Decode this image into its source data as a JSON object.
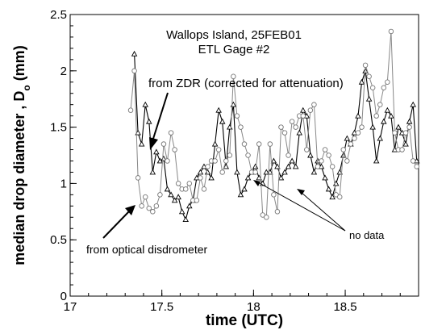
{
  "chart_data": {
    "type": "line",
    "title": "Wallops Island, 25FEB01",
    "subtitle": "ETL Gage #2",
    "xlabel": "time (UTC)",
    "ylabel": "median drop diameter , D",
    "ylabel_sub": "o",
    "ylabel_unit": "(mm)",
    "xlim": [
      17.0,
      18.9
    ],
    "ylim": [
      0,
      2.5
    ],
    "xticks": [
      "17",
      "17.5",
      "18",
      "18.5"
    ],
    "xtick_values": [
      17,
      17.5,
      18,
      18.5
    ],
    "yticks": [
      "0",
      "0.5",
      "1",
      "1.5",
      "2",
      "2.5"
    ],
    "ytick_values": [
      0,
      0.5,
      1,
      1.5,
      2,
      2.5
    ],
    "grid": false,
    "annotations": [
      {
        "text": "from ZDR (corrected for attenuation)"
      },
      {
        "text": "from optical disdrometer"
      },
      {
        "text": "no data"
      }
    ],
    "series": [
      {
        "marker": "triangle",
        "x": [
          17.35,
          17.37,
          17.39,
          17.41,
          17.43,
          17.45,
          17.47,
          17.49,
          17.51,
          17.53,
          17.55,
          17.57,
          17.59,
          17.61,
          17.63,
          17.65,
          17.67,
          17.69,
          17.71,
          17.73,
          17.75,
          17.77,
          17.79,
          17.81,
          17.83,
          17.85,
          17.87,
          17.89,
          17.91,
          17.93,
          17.95,
          17.97,
          17.99,
          18.01,
          18.03,
          18.05,
          18.07,
          18.09,
          18.11,
          18.13,
          18.15,
          18.17,
          18.19,
          18.21,
          18.23,
          18.25,
          18.27,
          18.29,
          18.31,
          18.33,
          18.35,
          18.37,
          18.39,
          18.41,
          18.43,
          18.45,
          18.47,
          18.49,
          18.51,
          18.53,
          18.55,
          18.57,
          18.59,
          18.61,
          18.63,
          18.65,
          18.67,
          18.69,
          18.71,
          18.73,
          18.75,
          18.77,
          18.79,
          18.81,
          18.83,
          18.85,
          18.87,
          18.89
        ],
        "y": [
          2.15,
          1.45,
          1.35,
          1.7,
          1.55,
          1.1,
          1.28,
          1.2,
          1.22,
          0.95,
          0.9,
          0.85,
          0.88,
          0.75,
          0.68,
          0.8,
          0.85,
          1.05,
          1.1,
          1.15,
          1.1,
          1.05,
          1.35,
          1.65,
          1.55,
          1.15,
          1.5,
          1.7,
          1.1,
          0.9,
          0.95,
          1.05,
          1.1,
          1.15,
          1.05,
          1.0,
          1.1,
          1.1,
          1.2,
          1.15,
          1.05,
          1.1,
          1.15,
          1.2,
          1.15,
          1.45,
          1.65,
          1.6,
          1.25,
          1.1,
          1.2,
          1.15,
          1.05,
          0.95,
          0.88,
          1.0,
          1.1,
          1.25,
          1.4,
          1.35,
          1.45,
          1.6,
          1.9,
          2.0,
          1.75,
          1.5,
          1.2,
          1.4,
          1.55,
          1.65,
          1.6,
          1.3,
          1.5,
          1.45,
          1.35,
          1.55,
          1.7,
          1.2
        ]
      },
      {
        "marker": "circle",
        "x": [
          17.33,
          17.35,
          17.37,
          17.39,
          17.41,
          17.43,
          17.45,
          17.47,
          17.49,
          17.51,
          17.53,
          17.55,
          17.57,
          17.59,
          17.61,
          17.63,
          17.65,
          17.67,
          17.69,
          17.71,
          17.73,
          17.75,
          17.77,
          17.79,
          17.81,
          17.83,
          17.85,
          17.87,
          17.89,
          17.91,
          17.93,
          17.95,
          17.97,
          17.99,
          18.01,
          18.03,
          18.05,
          18.07,
          18.09,
          18.11,
          18.13,
          18.15,
          18.17,
          18.19,
          18.21,
          18.23,
          18.25,
          18.27,
          18.29,
          18.31,
          18.33,
          18.35,
          18.37,
          18.39,
          18.41,
          18.43,
          18.45,
          18.47,
          18.49,
          18.51,
          18.53,
          18.55,
          18.57,
          18.59,
          18.61,
          18.63,
          18.65,
          18.67,
          18.69,
          18.71,
          18.73,
          18.75,
          18.77,
          18.79,
          18.81,
          18.83,
          18.85,
          18.87,
          18.89
        ],
        "y": [
          1.65,
          2.0,
          1.05,
          0.8,
          0.88,
          0.78,
          0.75,
          0.8,
          0.9,
          1.35,
          1.2,
          1.45,
          1.3,
          1.0,
          0.95,
          0.95,
          1.0,
          0.85,
          0.85,
          1.05,
          0.95,
          1.15,
          1.2,
          1.2,
          1.3,
          1.1,
          1.2,
          1.25,
          1.95,
          1.6,
          1.5,
          1.35,
          1.25,
          1.1,
          1.1,
          1.35,
          0.72,
          0.7,
          1.35,
          0.9,
          0.75,
          1.5,
          1.45,
          1.25,
          1.55,
          1.5,
          1.6,
          1.6,
          1.3,
          1.65,
          1.7,
          1.15,
          1.2,
          1.3,
          1.25,
          1.15,
          0.9,
          0.88,
          1.3,
          1.2,
          1.35,
          1.4,
          1.45,
          1.5,
          2.05,
          1.95,
          1.85,
          1.6,
          1.7,
          1.85,
          1.9,
          2.35,
          1.45,
          1.3,
          1.3,
          1.45,
          1.5,
          1.2,
          1.15
        ]
      }
    ]
  }
}
